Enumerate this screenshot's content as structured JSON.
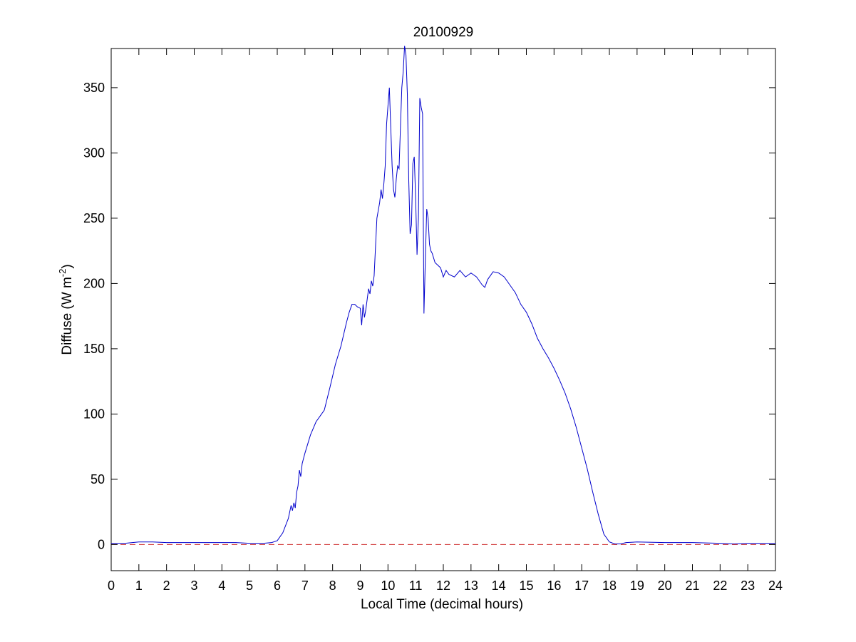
{
  "chart_data": {
    "type": "line",
    "title": "20100929",
    "xlabel": "Local Time (decimal hours)",
    "ylabel": {
      "main": "Diffuse (W m",
      "sup": "-2",
      "close": ")"
    },
    "xlim": [
      0,
      24
    ],
    "ylim": [
      -20,
      380
    ],
    "xticks": [
      0,
      1,
      2,
      3,
      4,
      5,
      6,
      7,
      8,
      9,
      10,
      11,
      12,
      13,
      14,
      15,
      16,
      17,
      18,
      19,
      20,
      21,
      22,
      23,
      24
    ],
    "yticks": [
      0,
      50,
      100,
      150,
      200,
      250,
      300,
      350
    ],
    "grid": false,
    "series": [
      {
        "style": "solid",
        "color": "#0000cc",
        "x": [
          0,
          0.5,
          1,
          1.5,
          2,
          2.5,
          3,
          3.5,
          4,
          4.5,
          5,
          5.5,
          5.8,
          6.0,
          6.2,
          6.4,
          6.5,
          6.55,
          6.6,
          6.65,
          6.7,
          6.75,
          6.8,
          6.85,
          6.9,
          7.0,
          7.2,
          7.4,
          7.6,
          7.7,
          7.9,
          8.1,
          8.3,
          8.5,
          8.6,
          8.7,
          8.8,
          8.9,
          9.0,
          9.05,
          9.1,
          9.15,
          9.2,
          9.3,
          9.35,
          9.4,
          9.45,
          9.5,
          9.6,
          9.7,
          9.75,
          9.8,
          9.85,
          9.9,
          9.95,
          10.0,
          10.05,
          10.1,
          10.15,
          10.2,
          10.25,
          10.3,
          10.35,
          10.4,
          10.5,
          10.55,
          10.6,
          10.65,
          10.7,
          10.75,
          10.8,
          10.85,
          10.9,
          10.95,
          11.0,
          11.05,
          11.1,
          11.15,
          11.2,
          11.25,
          11.3,
          11.35,
          11.4,
          11.45,
          11.5,
          11.55,
          11.6,
          11.7,
          11.8,
          11.9,
          12.0,
          12.1,
          12.2,
          12.4,
          12.6,
          12.8,
          13.0,
          13.2,
          13.4,
          13.5,
          13.6,
          13.8,
          14.0,
          14.2,
          14.4,
          14.6,
          14.8,
          15.0,
          15.2,
          15.4,
          15.6,
          15.8,
          16.0,
          16.2,
          16.4,
          16.6,
          16.8,
          17.0,
          17.2,
          17.4,
          17.6,
          17.8,
          18.0,
          18.2,
          18.4,
          18.6,
          19,
          20,
          21,
          22,
          22.5,
          23,
          24
        ],
        "y": [
          1,
          1,
          2,
          2,
          1.5,
          1.5,
          1.5,
          1.5,
          1.5,
          1.5,
          1,
          1,
          1.5,
          3,
          9,
          20,
          30,
          26,
          32,
          28,
          40,
          45,
          57,
          52,
          62,
          70,
          84,
          94,
          100,
          103,
          120,
          138,
          152,
          170,
          178,
          184,
          184,
          182,
          181,
          168,
          184,
          174,
          180,
          196,
          192,
          202,
          198,
          206,
          250,
          262,
          272,
          265,
          276,
          290,
          322,
          336,
          350,
          320,
          290,
          272,
          266,
          280,
          290,
          288,
          350,
          362,
          382,
          375,
          345,
          280,
          238,
          245,
          292,
          297,
          265,
          222,
          250,
          342,
          335,
          330,
          177,
          218,
          257,
          250,
          230,
          225,
          223,
          216,
          214,
          212,
          205,
          210,
          207,
          205,
          210,
          205,
          208,
          205,
          199,
          197,
          203,
          209,
          208,
          205,
          199,
          193,
          184,
          178,
          169,
          158,
          150,
          143,
          135,
          126,
          116,
          104,
          90,
          74,
          58,
          40,
          23,
          8,
          2,
          0.5,
          0.5,
          1.5,
          2,
          1.5,
          1.5,
          1,
          0.5,
          1,
          1
        ]
      },
      {
        "style": "dashed",
        "color": "#cc2222",
        "x": [
          0,
          24
        ],
        "y": [
          0,
          0
        ]
      }
    ]
  }
}
